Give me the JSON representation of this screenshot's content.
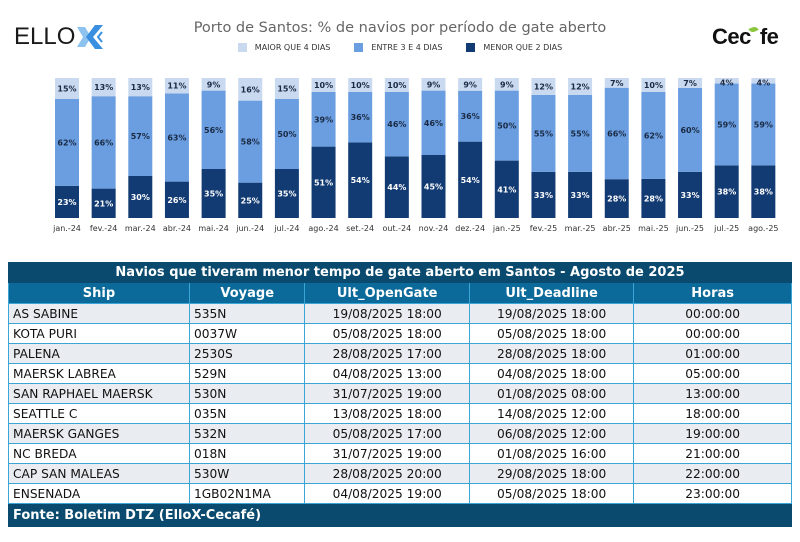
{
  "logos": {
    "left": {
      "text": "ELLO",
      "mark": "X"
    },
    "right": {
      "text_a": "Cec",
      "text_b": "fe"
    }
  },
  "colors": {
    "maior4": "#c9d9f0",
    "entre34": "#6a9ee0",
    "menor2": "#123b73",
    "table_title_bg": "#0a4a6e",
    "table_header_bg": "#0b6a9a",
    "table_border": "#3aa6d8"
  },
  "chart_data": {
    "type": "bar",
    "stacked": true,
    "percent": true,
    "title": "Porto de Santos: % de navios por período de gate aberto",
    "xlabel": "",
    "ylabel": "",
    "ylim": [
      0,
      100
    ],
    "grid": false,
    "legend_position": "top-center",
    "categories": [
      "jan.-24",
      "fev.-24",
      "mar.-24",
      "abr.-24",
      "mai.-24",
      "jun.-24",
      "jul.-24",
      "ago.-24",
      "set.-24",
      "out.-24",
      "nov.-24",
      "dez.-24",
      "jan.-25",
      "fev.-25",
      "mar.-25",
      "abr.-25",
      "mai.-25",
      "jun.-25",
      "jul.-25",
      "ago.-25"
    ],
    "series": [
      {
        "name": "MENOR QUE 2 DIAS",
        "color_key": "menor2",
        "values": [
          23,
          21,
          30,
          26,
          35,
          25,
          35,
          51,
          54,
          44,
          45,
          54,
          41,
          33,
          33,
          28,
          28,
          33,
          38,
          38
        ]
      },
      {
        "name": "ENTRE 3 E 4 DIAS",
        "color_key": "entre34",
        "values": [
          62,
          66,
          57,
          63,
          56,
          58,
          50,
          39,
          36,
          46,
          46,
          36,
          50,
          55,
          55,
          66,
          62,
          60,
          59,
          59
        ]
      },
      {
        "name": "MAIOR QUE 4 DIAS",
        "color_key": "maior4",
        "values": [
          15,
          13,
          13,
          11,
          9,
          16,
          15,
          10,
          10,
          10,
          9,
          9,
          9,
          12,
          12,
          7,
          10,
          7,
          4,
          4
        ]
      }
    ],
    "legend": [
      "MAIOR QUE 4 DIAS",
      "ENTRE 3 E 4 DIAS",
      "MENOR QUE 2 DIAS"
    ]
  },
  "table": {
    "title": "Navios que tiveram menor tempo de gate aberto em Santos - Agosto de 2025",
    "columns": [
      "Ship",
      "Voyage",
      "Ult_OpenGate",
      "Ult_Deadline",
      "Horas"
    ],
    "rows": [
      [
        "AS SABINE",
        "535N",
        "19/08/2025 18:00",
        "19/08/2025 18:00",
        "00:00:00"
      ],
      [
        "KOTA PURI",
        "0037W",
        "05/08/2025 18:00",
        "05/08/2025 18:00",
        "00:00:00"
      ],
      [
        "PALENA",
        "2530S",
        "28/08/2025 17:00",
        "28/08/2025 18:00",
        "01:00:00"
      ],
      [
        "MAERSK LABREA",
        "529N",
        "04/08/2025 13:00",
        "04/08/2025 18:00",
        "05:00:00"
      ],
      [
        "SAN RAPHAEL MAERSK",
        "530N",
        "31/07/2025 19:00",
        "01/08/2025 08:00",
        "13:00:00"
      ],
      [
        "SEATTLE C",
        "035N",
        "13/08/2025 18:00",
        "14/08/2025 12:00",
        "18:00:00"
      ],
      [
        "MAERSK GANGES",
        "532N",
        "05/08/2025 17:00",
        "06/08/2025 12:00",
        "19:00:00"
      ],
      [
        "NC BREDA",
        "018N",
        "31/07/2025 19:00",
        "01/08/2025 16:00",
        "21:00:00"
      ],
      [
        "CAP SAN MALEAS",
        "530W",
        "28/08/2025 20:00",
        "29/08/2025 18:00",
        "22:00:00"
      ],
      [
        "ENSENADA",
        "1GB02N1MA",
        "04/08/2025 19:00",
        "05/08/2025 18:00",
        "23:00:00"
      ]
    ],
    "footer": "Fonte: Boletim DTZ (ElloX-Cecafé)"
  }
}
